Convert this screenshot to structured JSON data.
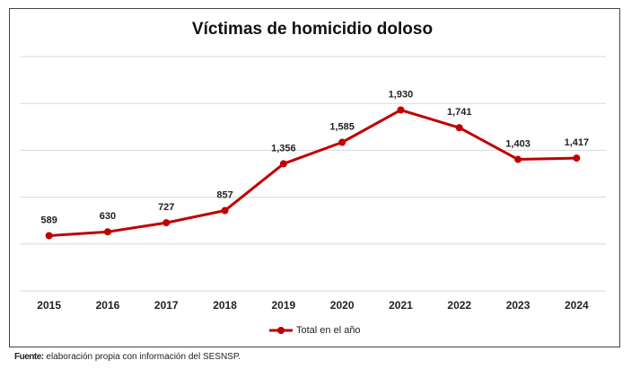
{
  "chart_data": {
    "type": "line",
    "title": "Víctimas de homicidio doloso",
    "categories": [
      "2015",
      "2016",
      "2017",
      "2018",
      "2019",
      "2020",
      "2021",
      "2022",
      "2023",
      "2024"
    ],
    "series": [
      {
        "name": "Total en el año",
        "color": "#c00000",
        "values": [
          589,
          630,
          727,
          857,
          1356,
          1585,
          1930,
          1741,
          1403,
          1417
        ],
        "value_labels": [
          "589",
          "630",
          "727",
          "857",
          "1,356",
          "1,585",
          "1,930",
          "1,741",
          "1,403",
          "1,417"
        ]
      }
    ],
    "ylim": [
      0,
      2500
    ],
    "yticks": [
      0,
      500,
      1000,
      1500,
      2000,
      2500
    ],
    "show_ytick_labels": false,
    "grid": true,
    "legend": "bottom"
  },
  "source": {
    "label": "Fuente:",
    "text": "elaboración propia con información del SESNSP."
  }
}
